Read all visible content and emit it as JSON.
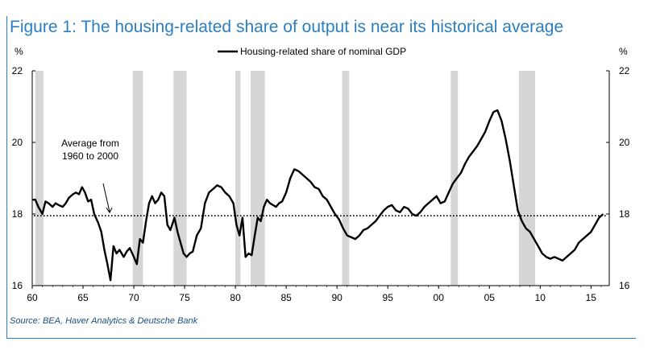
{
  "figure": {
    "title": "Figure 1: The housing-related share of output is near its historical average",
    "source": "Source: BEA, Haver Analytics & Deutsche Bank"
  },
  "chart_data": {
    "type": "line",
    "legend": "Housing-related share of nominal GDP",
    "legend_position": "top-center",
    "y_unit_left": "%",
    "y_unit_right": "%",
    "xlim": [
      1960,
      2016.8
    ],
    "ylim": [
      16,
      22
    ],
    "x_ticks": [
      {
        "value": 1960,
        "label": "60"
      },
      {
        "value": 1965,
        "label": "65"
      },
      {
        "value": 1970,
        "label": "70"
      },
      {
        "value": 1975,
        "label": "75"
      },
      {
        "value": 1980,
        "label": "80"
      },
      {
        "value": 1985,
        "label": "85"
      },
      {
        "value": 1990,
        "label": "90"
      },
      {
        "value": 1995,
        "label": "95"
      },
      {
        "value": 2000,
        "label": "00"
      },
      {
        "value": 2005,
        "label": "05"
      },
      {
        "value": 2010,
        "label": "10"
      },
      {
        "value": 2015,
        "label": "15"
      }
    ],
    "y_ticks": [
      16,
      18,
      20,
      22
    ],
    "average_line": {
      "value": 17.95,
      "label_line1": "Average from",
      "label_line2": "1960 to 2000"
    },
    "recessions": [
      [
        1960.3,
        1961.1
      ],
      [
        1969.9,
        1970.9
      ],
      [
        1973.9,
        1975.2
      ],
      [
        1980.0,
        1980.5
      ],
      [
        1981.5,
        1982.9
      ],
      [
        1990.5,
        1991.2
      ],
      [
        2001.2,
        2001.9
      ],
      [
        2007.9,
        2009.5
      ]
    ],
    "series": [
      {
        "name": "Housing-related share of nominal GDP",
        "color": "#000000",
        "x": [
          1960.0,
          1960.3,
          1960.6,
          1961.0,
          1961.3,
          1961.6,
          1962.0,
          1962.3,
          1962.6,
          1963.0,
          1963.3,
          1963.6,
          1964.0,
          1964.3,
          1964.6,
          1964.9,
          1965.2,
          1965.5,
          1965.8,
          1966.1,
          1966.5,
          1966.8,
          1967.1,
          1967.4,
          1967.7,
          1968.0,
          1968.3,
          1968.6,
          1969.0,
          1969.3,
          1969.6,
          1970.0,
          1970.3,
          1970.6,
          1970.9,
          1971.2,
          1971.5,
          1971.8,
          1972.1,
          1972.4,
          1972.7,
          1973.0,
          1973.3,
          1973.6,
          1974.0,
          1974.3,
          1974.6,
          1974.9,
          1975.2,
          1975.5,
          1975.8,
          1976.2,
          1976.6,
          1977.0,
          1977.4,
          1977.8,
          1978.2,
          1978.6,
          1979.0,
          1979.4,
          1979.8,
          1980.1,
          1980.4,
          1980.7,
          1981.0,
          1981.3,
          1981.6,
          1981.9,
          1982.2,
          1982.5,
          1982.8,
          1983.1,
          1983.4,
          1983.7,
          1984.0,
          1984.3,
          1984.6,
          1985.0,
          1985.4,
          1985.8,
          1986.2,
          1986.6,
          1987.0,
          1987.4,
          1987.8,
          1988.2,
          1988.6,
          1989.0,
          1989.4,
          1989.8,
          1990.2,
          1990.6,
          1991.0,
          1991.4,
          1991.8,
          1992.2,
          1992.6,
          1993.0,
          1993.4,
          1993.8,
          1994.2,
          1994.6,
          1995.0,
          1995.4,
          1995.8,
          1996.2,
          1996.6,
          1997.0,
          1997.4,
          1997.8,
          1998.2,
          1998.6,
          1999.0,
          1999.4,
          1999.8,
          2000.2,
          2000.6,
          2001.0,
          2001.4,
          2001.8,
          2002.2,
          2002.6,
          2003.0,
          2003.4,
          2003.8,
          2004.2,
          2004.6,
          2005.0,
          2005.4,
          2005.8,
          2006.2,
          2006.6,
          2007.0,
          2007.4,
          2007.8,
          2008.2,
          2008.6,
          2009.0,
          2009.4,
          2009.8,
          2010.2,
          2010.6,
          2011.0,
          2011.4,
          2011.8,
          2012.2,
          2012.6,
          2013.0,
          2013.4,
          2013.8,
          2014.2,
          2014.6,
          2015.0,
          2015.4,
          2015.8,
          2016.2
        ],
        "y": [
          18.4,
          18.4,
          18.2,
          18.0,
          18.35,
          18.3,
          18.2,
          18.3,
          18.25,
          18.2,
          18.3,
          18.45,
          18.55,
          18.6,
          18.55,
          18.75,
          18.6,
          18.35,
          18.4,
          18.0,
          17.75,
          17.5,
          17.0,
          16.6,
          16.15,
          17.1,
          16.9,
          17.0,
          16.8,
          16.95,
          17.05,
          16.8,
          16.6,
          17.3,
          17.2,
          17.8,
          18.3,
          18.5,
          18.3,
          18.4,
          18.6,
          18.5,
          17.7,
          17.55,
          17.9,
          17.5,
          17.2,
          16.9,
          16.8,
          16.9,
          16.95,
          17.4,
          17.6,
          18.3,
          18.6,
          18.7,
          18.8,
          18.75,
          18.6,
          18.5,
          18.3,
          17.7,
          17.4,
          17.9,
          16.8,
          16.9,
          16.85,
          17.4,
          17.9,
          17.8,
          18.2,
          18.4,
          18.3,
          18.25,
          18.2,
          18.3,
          18.35,
          18.6,
          19.0,
          19.25,
          19.2,
          19.1,
          19.0,
          18.9,
          18.75,
          18.7,
          18.5,
          18.4,
          18.2,
          18.0,
          17.85,
          17.6,
          17.4,
          17.35,
          17.3,
          17.4,
          17.55,
          17.6,
          17.7,
          17.8,
          17.95,
          18.1,
          18.2,
          18.25,
          18.1,
          18.05,
          18.2,
          18.15,
          18.0,
          17.95,
          18.05,
          18.2,
          18.3,
          18.4,
          18.5,
          18.3,
          18.35,
          18.6,
          18.85,
          19.0,
          19.15,
          19.4,
          19.6,
          19.75,
          19.9,
          20.1,
          20.3,
          20.6,
          20.85,
          20.9,
          20.6,
          20.1,
          19.5,
          18.8,
          18.1,
          17.8,
          17.6,
          17.5,
          17.3,
          17.1,
          16.9,
          16.8,
          16.75,
          16.8,
          16.75,
          16.7,
          16.8,
          16.9,
          17.0,
          17.2,
          17.3,
          17.4,
          17.5,
          17.7,
          17.9,
          18.0
        ]
      }
    ]
  }
}
